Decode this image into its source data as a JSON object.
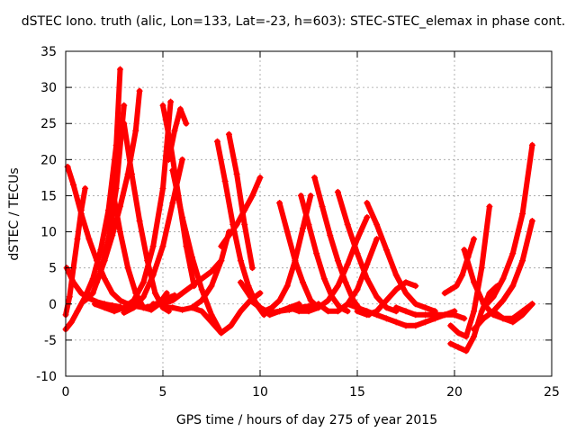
{
  "chart_data": {
    "type": "scatter",
    "title": "dSTEC Iono. truth (alic, Lon=133, Lat=-23, h=603): STEC-STEC_elemax in phase cont.",
    "xlabel": "GPS time / hours of day 275 of year 2015",
    "ylabel": "dSTEC  / TECUs",
    "xlim": [
      0,
      25
    ],
    "ylim": [
      -10,
      35
    ],
    "xticks": [
      0,
      5,
      10,
      15,
      20,
      25
    ],
    "yticks": [
      -10,
      -5,
      0,
      5,
      10,
      15,
      20,
      25,
      30,
      35
    ],
    "xtick_labels": [
      "0",
      "5",
      "10",
      "15",
      "20",
      "25"
    ],
    "ytick_labels": [
      "-10",
      "-5",
      "0",
      "5",
      "10",
      "15",
      "20",
      "25",
      "30",
      "35"
    ],
    "grid": true,
    "marker": "+",
    "color": "#ff0000",
    "series": [
      {
        "x": [
          0.0,
          0.3,
          0.6,
          1.0,
          1.4,
          1.8,
          2.2,
          2.6,
          2.8
        ],
        "y": [
          -3.5,
          -2.5,
          -1.0,
          1.0,
          3.5,
          7.5,
          13.0,
          22.0,
          32.5
        ]
      },
      {
        "x": [
          0.1,
          0.4,
          0.8,
          1.2,
          1.6,
          2.0,
          2.4,
          2.8,
          3.2,
          3.6,
          4.0,
          4.4,
          4.8,
          5.2,
          5.6
        ],
        "y": [
          19.0,
          16.5,
          12.5,
          9.0,
          6.0,
          3.5,
          1.5,
          0.5,
          0.0,
          -0.3,
          -0.5,
          -0.3,
          0.2,
          0.8,
          1.2
        ]
      },
      {
        "x": [
          0.0,
          0.2,
          0.4,
          0.6,
          0.8,
          1.0
        ],
        "y": [
          -1.5,
          1.0,
          5.0,
          9.0,
          13.0,
          16.0
        ]
      },
      {
        "x": [
          0.05,
          0.4,
          0.8,
          1.2,
          1.6,
          2.0,
          2.4,
          2.8
        ],
        "y": [
          5.0,
          3.0,
          1.5,
          0.8,
          0.3,
          0.0,
          -0.2,
          -0.4
        ]
      },
      {
        "x": [
          1.0,
          1.4,
          1.8,
          2.2,
          2.6,
          3.0
        ],
        "y": [
          0.5,
          1.5,
          4.5,
          9.0,
          16.0,
          27.5
        ]
      },
      {
        "x": [
          1.6,
          2.0,
          2.4,
          2.8,
          3.2,
          3.6,
          3.8
        ],
        "y": [
          3.0,
          6.0,
          9.5,
          13.5,
          18.0,
          24.0,
          29.5
        ]
      },
      {
        "x": [
          2.4,
          2.8,
          3.2,
          3.6,
          4.0,
          4.4,
          4.8,
          5.2
        ],
        "y": [
          16.0,
          10.0,
          5.0,
          1.5,
          -0.5,
          -0.8,
          0.0,
          1.5
        ]
      },
      {
        "x": [
          3.0,
          3.4,
          3.8,
          4.2,
          4.6,
          5.0,
          5.3
        ],
        "y": [
          25.0,
          18.0,
          11.5,
          6.0,
          1.5,
          -0.5,
          -1.0
        ]
      },
      {
        "x": [
          1.5,
          2.0,
          2.5,
          3.0,
          3.5,
          4.0,
          4.5,
          5.0,
          5.4
        ],
        "y": [
          0.0,
          -0.5,
          -1.0,
          -0.5,
          0.5,
          3.0,
          8.0,
          16.0,
          28.0
        ]
      },
      {
        "x": [
          5.0,
          5.4,
          5.8,
          6.2,
          6.6
        ],
        "y": [
          27.5,
          22.0,
          15.0,
          8.0,
          2.5
        ]
      },
      {
        "x": [
          5.3,
          5.6,
          5.9,
          6.2
        ],
        "y": [
          20.0,
          24.0,
          27.0,
          25.0
        ]
      },
      {
        "x": [
          3.0,
          3.5,
          4.0,
          4.5,
          5.0,
          5.5,
          6.0
        ],
        "y": [
          -1.2,
          -0.5,
          1.0,
          4.0,
          8.0,
          14.0,
          20.0
        ]
      },
      {
        "x": [
          5.5,
          6.0,
          6.5,
          7.0,
          7.5,
          8.0
        ],
        "y": [
          18.5,
          12.0,
          6.5,
          2.0,
          -1.5,
          -4.0
        ]
      },
      {
        "x": [
          4.5,
          5.0,
          5.5,
          6.0,
          6.5,
          7.0,
          7.5,
          8.0,
          8.4
        ],
        "y": [
          0.0,
          0.0,
          0.5,
          1.5,
          2.5,
          3.5,
          4.5,
          6.0,
          10.0
        ]
      },
      {
        "x": [
          5.0,
          5.5,
          6.0,
          6.5,
          7.0,
          7.5,
          8.0
        ],
        "y": [
          -0.5,
          -0.5,
          -0.8,
          -0.5,
          0.5,
          2.5,
          6.0
        ]
      },
      {
        "x": [
          6.5,
          7.0,
          7.5,
          8.0,
          8.5,
          9.0,
          9.5,
          10.0
        ],
        "y": [
          -0.5,
          -1.0,
          -2.5,
          -4.0,
          -3.0,
          -1.0,
          0.5,
          1.5
        ]
      },
      {
        "x": [
          7.8,
          8.2,
          8.6,
          9.0,
          9.4,
          9.8,
          10.2
        ],
        "y": [
          22.5,
          17.0,
          11.0,
          6.0,
          2.5,
          0.0,
          -1.5
        ]
      },
      {
        "x": [
          8.4,
          8.8,
          9.2,
          9.6
        ],
        "y": [
          23.5,
          18.0,
          11.0,
          5.0
        ]
      },
      {
        "x": [
          8.0,
          8.4,
          8.8,
          9.2,
          9.6,
          10.0
        ],
        "y": [
          8.0,
          9.5,
          11.0,
          13.0,
          15.0,
          17.5
        ]
      },
      {
        "x": [
          9.0,
          9.5,
          10.0,
          10.5,
          11.0,
          11.5,
          12.0
        ],
        "y": [
          3.0,
          1.0,
          -0.5,
          -1.5,
          -1.0,
          -0.5,
          0.0
        ]
      },
      {
        "x": [
          9.5,
          10.0,
          10.5,
          11.0,
          11.5,
          12.0,
          12.5,
          13.0
        ],
        "y": [
          0.5,
          -0.5,
          -1.2,
          -1.0,
          -0.8,
          -0.5,
          -0.3,
          -0.2
        ]
      },
      {
        "x": [
          11.0,
          11.4,
          11.8,
          12.2,
          12.6,
          13.0
        ],
        "y": [
          14.0,
          10.0,
          6.0,
          3.0,
          0.5,
          -0.5
        ]
      },
      {
        "x": [
          10.2,
          10.6,
          11.0,
          11.4,
          11.8,
          12.2,
          12.6
        ],
        "y": [
          -1.0,
          -0.5,
          0.5,
          2.5,
          6.0,
          10.5,
          15.0
        ]
      },
      {
        "x": [
          12.1,
          12.5,
          12.9,
          13.3,
          13.7,
          14.1,
          14.5
        ],
        "y": [
          15.0,
          11.0,
          7.0,
          3.5,
          1.0,
          -0.5,
          -1.0
        ]
      },
      {
        "x": [
          11.5,
          12.0,
          12.5,
          13.0,
          13.5,
          14.0,
          14.5,
          15.0,
          15.5
        ],
        "y": [
          -0.5,
          -1.0,
          -1.0,
          -0.5,
          0.5,
          2.5,
          5.5,
          9.0,
          12.0
        ]
      },
      {
        "x": [
          12.8,
          13.2,
          13.6,
          14.0,
          14.4,
          14.8,
          15.2,
          15.6
        ],
        "y": [
          17.5,
          13.5,
          9.5,
          6.0,
          3.0,
          0.5,
          -1.0,
          -1.5
        ]
      },
      {
        "x": [
          14.0,
          14.5,
          15.0,
          15.5,
          16.0,
          16.5,
          17.0
        ],
        "y": [
          15.5,
          11.0,
          7.0,
          3.5,
          1.0,
          -0.5,
          -1.0
        ]
      },
      {
        "x": [
          13.0,
          13.5,
          14.0,
          14.5,
          15.0,
          15.5,
          16.0
        ],
        "y": [
          0.0,
          -1.0,
          -1.0,
          0.0,
          2.0,
          5.5,
          9.0
        ]
      },
      {
        "x": [
          15.5,
          16.0,
          16.5,
          17.0,
          17.5,
          18.0,
          18.5,
          19.0
        ],
        "y": [
          14.0,
          11.0,
          7.5,
          4.0,
          1.5,
          0.0,
          -0.5,
          -1.0
        ]
      },
      {
        "x": [
          15.0,
          15.5,
          16.0,
          16.5,
          17.0,
          17.5,
          18.0
        ],
        "y": [
          -1.0,
          -1.5,
          -1.0,
          0.5,
          2.0,
          3.0,
          2.5
        ]
      },
      {
        "x": [
          14.5,
          15.0,
          15.5,
          16.0,
          16.5,
          17.0,
          17.5,
          18.0,
          18.5,
          19.0,
          19.5,
          20.0
        ],
        "y": [
          0.0,
          -0.5,
          -1.0,
          -1.5,
          -2.0,
          -2.5,
          -3.0,
          -3.0,
          -2.5,
          -2.0,
          -1.5,
          -1.0
        ]
      },
      {
        "x": [
          17.0,
          17.5,
          18.0,
          18.5,
          19.0,
          19.5,
          20.0,
          20.5
        ],
        "y": [
          -0.5,
          -1.0,
          -1.5,
          -1.5,
          -1.5,
          -1.5,
          -1.5,
          -2.0
        ]
      },
      {
        "x": [
          19.5,
          19.8,
          20.1,
          20.4,
          20.7,
          21.0
        ],
        "y": [
          1.5,
          2.0,
          2.5,
          4.0,
          6.5,
          9.0
        ]
      },
      {
        "x": [
          19.8,
          20.2,
          20.6,
          21.0,
          21.4,
          21.8
        ],
        "y": [
          -3.0,
          -4.0,
          -4.5,
          -1.0,
          5.0,
          13.5
        ]
      },
      {
        "x": [
          19.8,
          20.2,
          20.6,
          21.0,
          21.4,
          21.8,
          22.2
        ],
        "y": [
          -5.5,
          -6.0,
          -6.5,
          -4.5,
          -1.0,
          1.5,
          2.5
        ]
      },
      {
        "x": [
          20.5,
          21.0,
          21.5,
          22.0,
          22.5,
          23.0,
          23.5,
          24.0
        ],
        "y": [
          7.5,
          3.0,
          0.0,
          -1.5,
          -2.0,
          -2.0,
          -1.0,
          0.0
        ]
      },
      {
        "x": [
          21.0,
          21.5,
          22.0,
          22.5,
          23.0,
          23.5,
          24.0
        ],
        "y": [
          -3.5,
          -2.0,
          -1.0,
          0.5,
          2.5,
          6.0,
          11.5
        ]
      },
      {
        "x": [
          21.5,
          22.0,
          22.5,
          23.0,
          23.5,
          24.0
        ],
        "y": [
          -0.5,
          1.0,
          3.5,
          7.0,
          12.5,
          22.0
        ]
      },
      {
        "x": [
          22.0,
          22.5,
          23.0,
          23.5,
          24.0
        ],
        "y": [
          -1.0,
          -2.0,
          -2.5,
          -1.5,
          0.0
        ]
      }
    ]
  }
}
